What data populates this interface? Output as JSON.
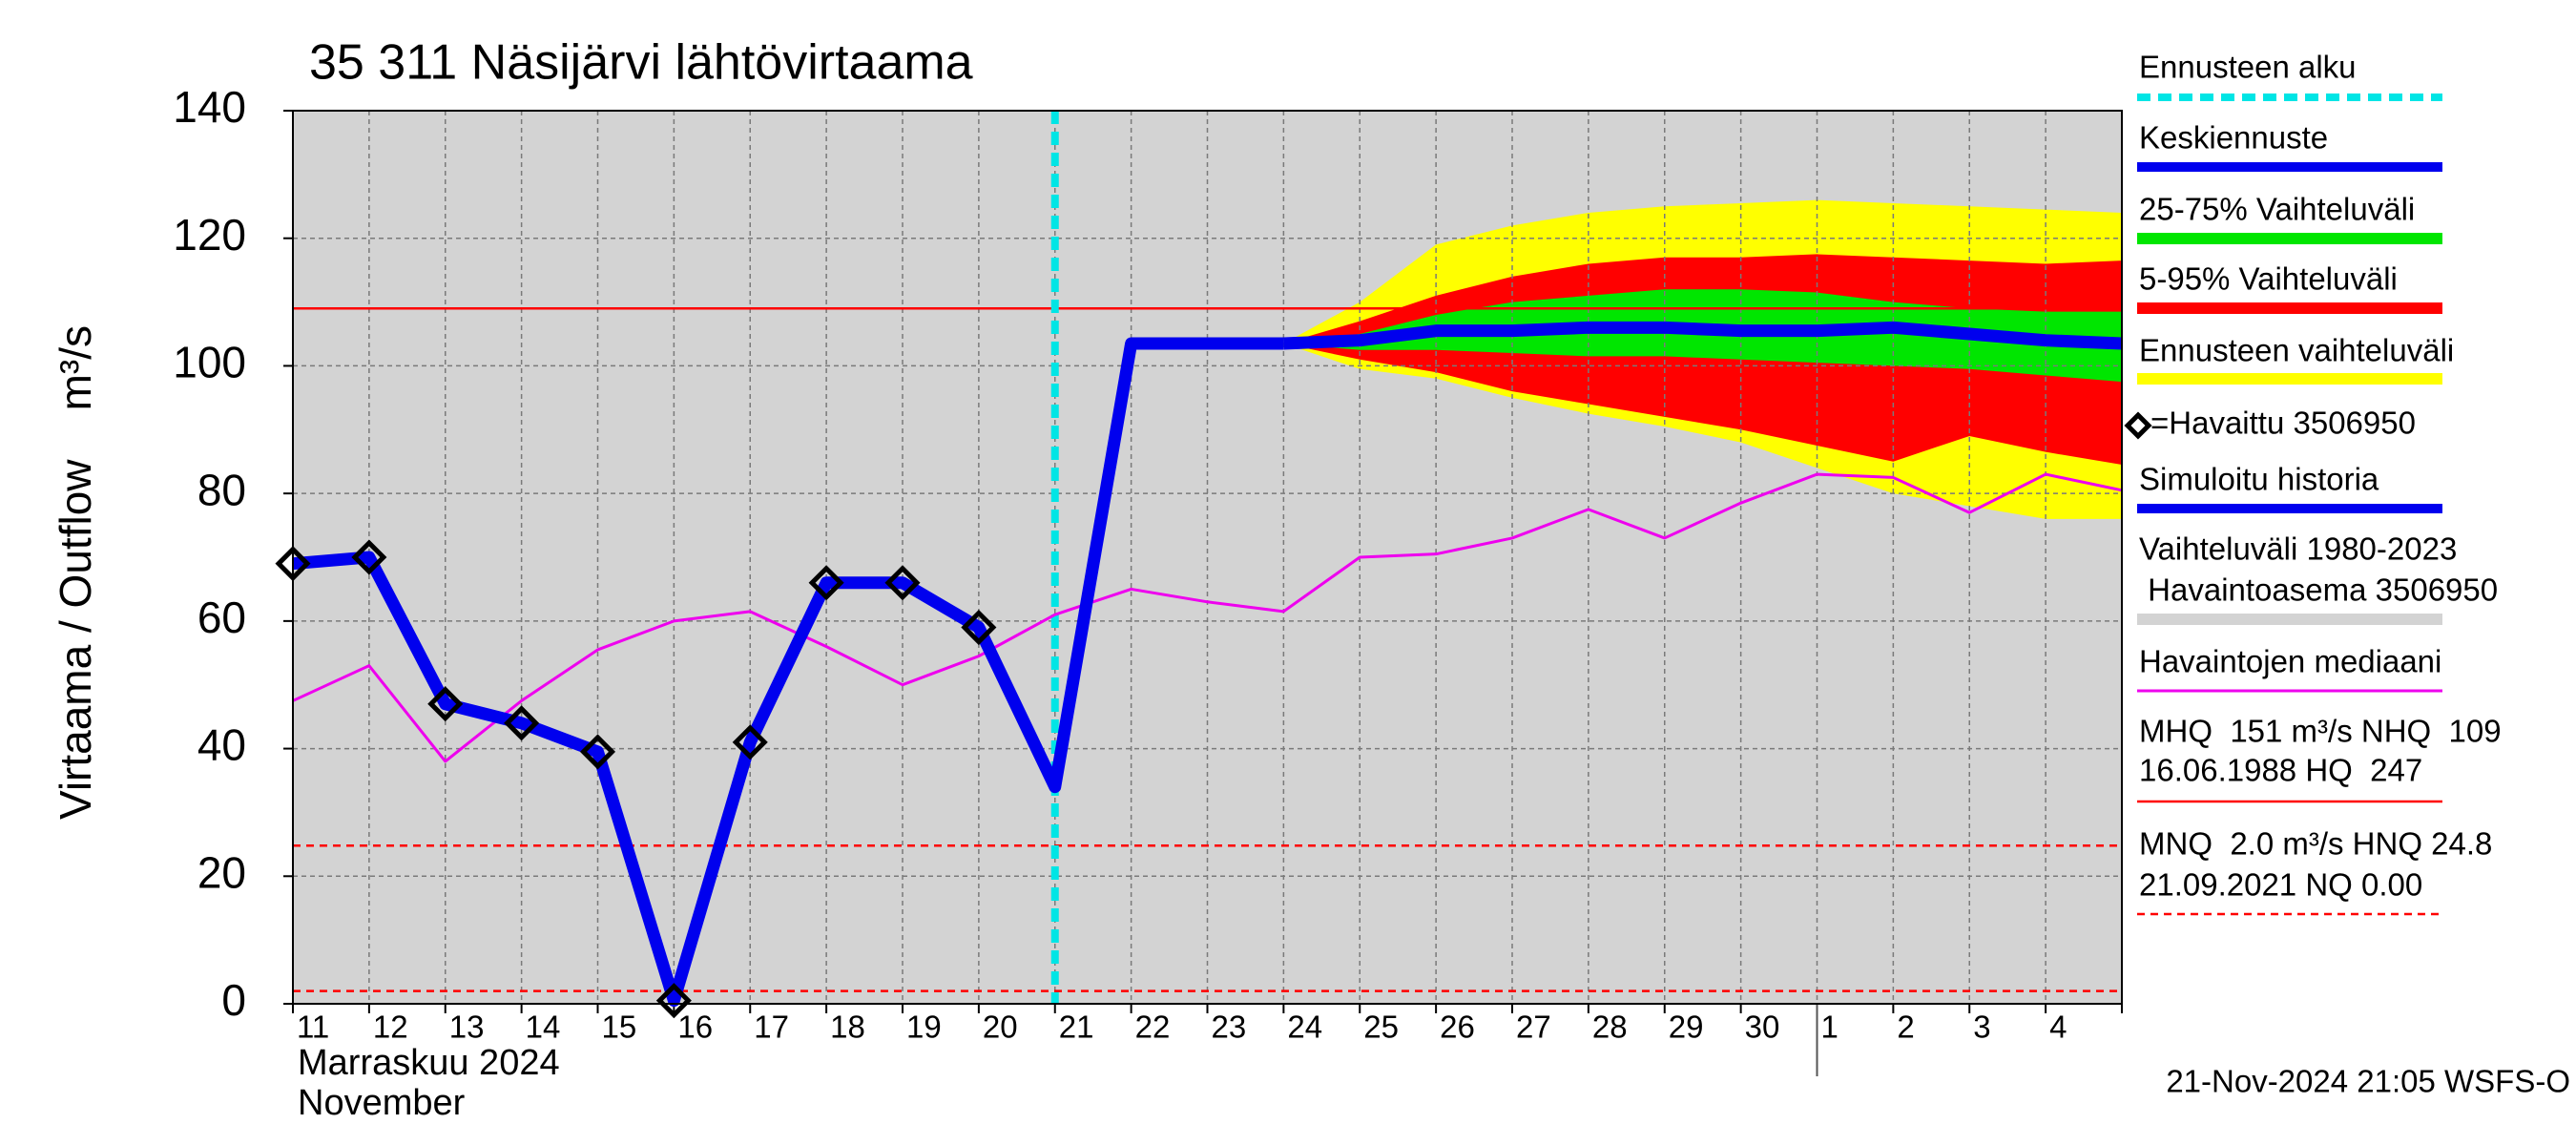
{
  "chart_data": {
    "type": "line",
    "title": "35 311 Näsijärvi lähtövirtaama",
    "y_label": "Virtaama / Outflow    m³/s",
    "month_label": "Marraskuu 2024",
    "month_label_en": "November",
    "footer": "21-Nov-2024 21:05 WSFS-O",
    "categories": [
      "11",
      "12",
      "13",
      "14",
      "15",
      "16",
      "17",
      "18",
      "19",
      "20",
      "21",
      "22",
      "23",
      "24",
      "25",
      "26",
      "27",
      "28",
      "29",
      "30",
      "1",
      "2",
      "3",
      "4",
      null
    ],
    "month_break_index": 20,
    "ylim": [
      0,
      140
    ],
    "yticks": [
      0,
      20,
      40,
      60,
      80,
      100,
      120,
      140
    ],
    "grid": true,
    "background_color": "#d3d3d3",
    "background_labels": [
      "Vaihteluväli 1980-2023",
      " Havaintoasema 3506950"
    ],
    "forecast_start": {
      "name": "Ennusteen alku",
      "index": 10,
      "color": "#00e5e5"
    },
    "bands": [
      {
        "name": "Ennusteen vaihteluväli",
        "color": "#ffff00",
        "high": [
          null,
          null,
          null,
          null,
          null,
          null,
          null,
          null,
          null,
          null,
          null,
          null,
          null,
          103.5,
          110,
          119,
          122,
          124,
          125,
          125.5,
          126,
          125.5,
          125,
          124.5,
          124
        ],
        "low": [
          null,
          null,
          null,
          null,
          null,
          null,
          null,
          null,
          null,
          null,
          null,
          null,
          null,
          103.5,
          99.5,
          98,
          95,
          92.5,
          90.5,
          88,
          84,
          80,
          78,
          76,
          76
        ]
      },
      {
        "name": "5-95% Vaihteluväli",
        "color": "#ff0000",
        "high": [
          null,
          null,
          null,
          null,
          null,
          null,
          null,
          null,
          null,
          null,
          null,
          null,
          null,
          103.5,
          107,
          111,
          114,
          116,
          117,
          117,
          117.5,
          117,
          116.5,
          116,
          116.5
        ],
        "low": [
          null,
          null,
          null,
          null,
          null,
          null,
          null,
          null,
          null,
          null,
          null,
          null,
          null,
          103.5,
          101,
          99,
          96,
          94,
          92,
          90,
          87.5,
          85,
          89,
          86.5,
          84.5
        ]
      },
      {
        "name": "25-75% Vaihteluväli",
        "color": "#00e600",
        "high": [
          null,
          null,
          null,
          null,
          null,
          null,
          null,
          null,
          null,
          null,
          null,
          null,
          null,
          103.5,
          105,
          108,
          110,
          111,
          112,
          112,
          111.5,
          110,
          109,
          108.5,
          108.5
        ],
        "low": [
          null,
          null,
          null,
          null,
          null,
          null,
          null,
          null,
          null,
          null,
          null,
          null,
          null,
          103.5,
          102.5,
          102.5,
          102,
          101.5,
          101.5,
          101,
          100.5,
          100,
          99.5,
          98.5,
          97.5
        ]
      }
    ],
    "series": [
      {
        "name": "Havaintojen mediaani",
        "color": "#ee00ee",
        "width": 3,
        "values": [
          47.5,
          53,
          38,
          47.5,
          55.5,
          60,
          61.5,
          56,
          50,
          54.5,
          61,
          65,
          63,
          61.5,
          70,
          70.5,
          73,
          77.5,
          73,
          78.5,
          83,
          82.5,
          77,
          83,
          80.5
        ]
      },
      {
        "name": "Simuloitu historia",
        "color": "#0000ee",
        "width": 13,
        "values": [
          69,
          70,
          47,
          44,
          39.5,
          0.5,
          41,
          66,
          66,
          59,
          34,
          103.5,
          103.5,
          103.5,
          null,
          null,
          null,
          null,
          null,
          null,
          null,
          null,
          null,
          null,
          null
        ]
      },
      {
        "name": "Keskiennuste",
        "color": "#0000ee",
        "width": 13,
        "values": [
          null,
          null,
          null,
          null,
          null,
          null,
          null,
          null,
          null,
          null,
          null,
          null,
          null,
          103.5,
          104,
          105.5,
          105.5,
          106,
          106,
          105.5,
          105.5,
          106,
          105,
          104,
          103.5
        ]
      },
      {
        "name": "=Havaittu 3506950",
        "color": "#000000",
        "marker": "diamond",
        "values": [
          69,
          70,
          47,
          44,
          39.5,
          0.5,
          41,
          66,
          66,
          59,
          null,
          null,
          null,
          null,
          null,
          null,
          null,
          null,
          null,
          null,
          null,
          null,
          null,
          null,
          null
        ]
      }
    ],
    "reference_lines": [
      {
        "value": 109,
        "style": "solid",
        "color": "#ff0000",
        "labels": [
          "MHQ  151 m³/s NHQ  109",
          "16.06.1988 HQ  247"
        ]
      },
      {
        "value": 24.8,
        "style": "dashed",
        "color": "#ff0000",
        "labels": [
          "MNQ  2.0 m³/s HNQ 24.8",
          "21.09.2021 NQ 0.00"
        ]
      },
      {
        "value": 2.0,
        "style": "dashed",
        "color": "#ff0000"
      }
    ]
  }
}
